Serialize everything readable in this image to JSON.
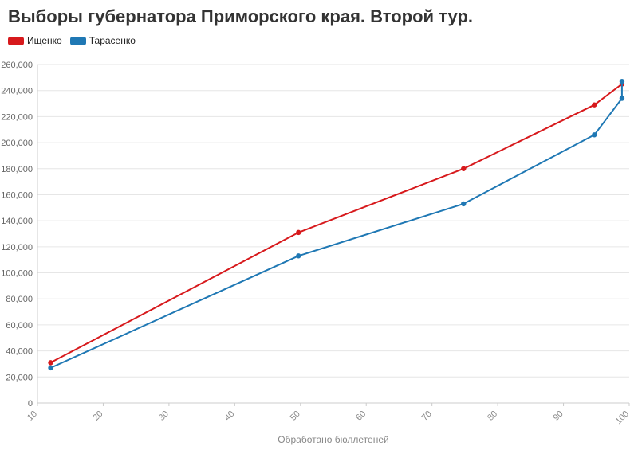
{
  "chart_data": {
    "type": "line",
    "title": "Выборы губернатора Приморского края. Второй тур.",
    "xlabel": "Обработано бюллетеней",
    "ylabel": "",
    "xlim": [
      10,
      100
    ],
    "ylim": [
      0,
      260000
    ],
    "xticks": [
      10,
      20,
      30,
      40,
      50,
      60,
      70,
      80,
      90,
      100
    ],
    "yticks": [
      0,
      20000,
      40000,
      60000,
      80000,
      100000,
      120000,
      140000,
      160000,
      180000,
      200000,
      220000,
      240000,
      260000
    ],
    "grid": true,
    "legend_position": "top-left",
    "series": [
      {
        "name": "Ищенко",
        "color": "#d7191c",
        "x": [
          12,
          49.7,
          74.8,
          94.7,
          98.9
        ],
        "y": [
          31000,
          131000,
          180000,
          229000,
          245000
        ]
      },
      {
        "name": "Тарасенко",
        "color": "#1f78b4",
        "x": [
          12,
          49.7,
          74.8,
          94.7,
          98.9,
          98.9
        ],
        "y": [
          27000,
          113000,
          153000,
          206000,
          234000,
          247000
        ]
      }
    ]
  }
}
